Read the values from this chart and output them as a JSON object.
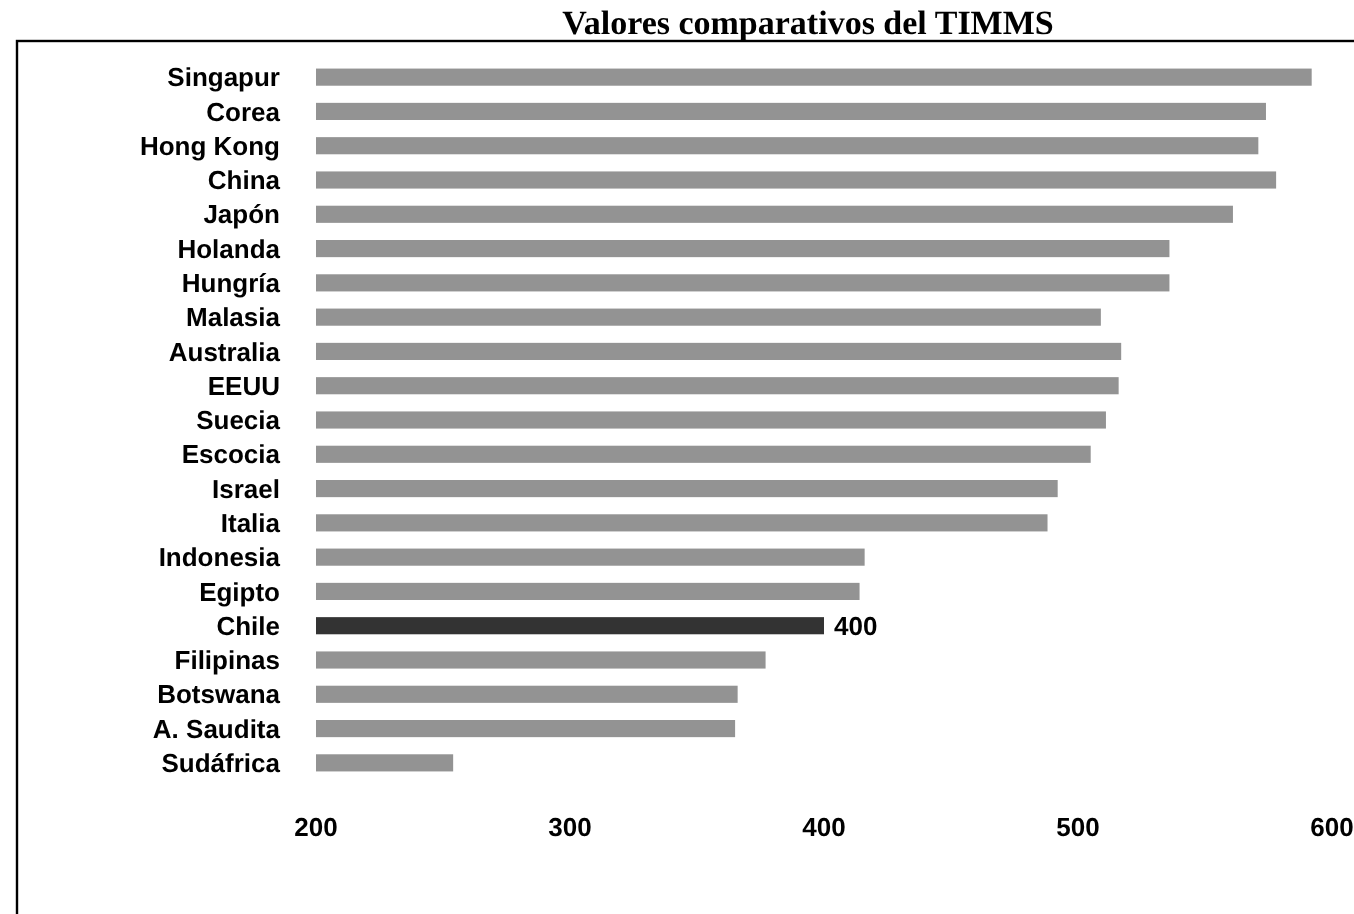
{
  "chart_data": {
    "type": "bar",
    "orientation": "horizontal",
    "title": "Valores comparativos del TIMMS",
    "categories": [
      "Singapur",
      "Corea",
      "Hong Kong",
      "China",
      "Japón",
      "Holanda",
      "Hungría",
      "Malasia",
      "Australia",
      "EEUU",
      "Suecia",
      "Escocia",
      "Israel",
      "Italia",
      "Indonesia",
      "Egipto",
      "Chile",
      "Filipinas",
      "Botswana",
      "A. Saudita",
      "Sudáfrica"
    ],
    "values": [
      592,
      574,
      571,
      578,
      561,
      536,
      536,
      509,
      517,
      516,
      511,
      505,
      492,
      488,
      416,
      414,
      400,
      377,
      366,
      365,
      254
    ],
    "colors": [
      "#939393",
      "#939393",
      "#939393",
      "#939393",
      "#939393",
      "#939393",
      "#939393",
      "#939393",
      "#939393",
      "#939393",
      "#939393",
      "#939393",
      "#939393",
      "#939393",
      "#939393",
      "#939393",
      "#333333",
      "#939393",
      "#939393",
      "#939393",
      "#939393"
    ],
    "value_labels": [
      null,
      null,
      null,
      null,
      null,
      null,
      null,
      null,
      null,
      null,
      null,
      null,
      null,
      null,
      null,
      null,
      "400",
      null,
      null,
      null,
      null
    ],
    "xlim": [
      200,
      600
    ],
    "xticks": [
      200,
      300,
      400,
      500,
      600
    ],
    "grid": false
  }
}
